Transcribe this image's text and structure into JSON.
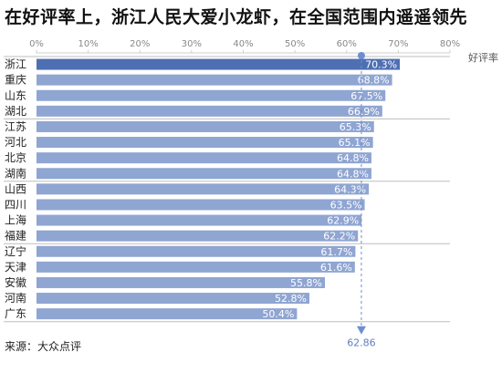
{
  "title": "在好评率上，浙江人民大爱小龙虾，在全国范围内遥遥领先",
  "source": "来源：大众点评",
  "colors": {
    "highlight_bar": "#4f6fb3",
    "bar": "#8fa5d2",
    "reference_line": "#6e8fcf"
  },
  "chart_data": {
    "type": "bar",
    "orientation": "horizontal",
    "title": "在好评率上，浙江人民大爱小龙虾，在全国范围内遥遥领先",
    "xlabel": "好评率",
    "ylabel": "",
    "xlim": [
      0,
      80
    ],
    "x_ticks": [
      "0%",
      "10%",
      "20%",
      "30%",
      "40%",
      "50%",
      "60%",
      "70%",
      "80%"
    ],
    "categories": [
      "浙江",
      "重庆",
      "山东",
      "湖北",
      "江苏",
      "河北",
      "北京",
      "湖南",
      "山西",
      "四川",
      "上海",
      "福建",
      "辽宁",
      "天津",
      "安徽",
      "河南",
      "广东"
    ],
    "values": [
      70.3,
      68.8,
      67.5,
      66.9,
      65.3,
      65.1,
      64.8,
      64.8,
      64.3,
      63.5,
      62.9,
      62.2,
      61.7,
      61.6,
      55.8,
      52.8,
      50.4
    ],
    "value_labels": [
      "70.3%",
      "68.8%",
      "67.5%",
      "66.9%",
      "65.3%",
      "65.1%",
      "64.8%",
      "64.8%",
      "64.3%",
      "63.5%",
      "62.9%",
      "62.2%",
      "61.7%",
      "61.6%",
      "55.8%",
      "52.8%",
      "50.4%"
    ],
    "highlight_category": "浙江",
    "reference_line": {
      "value": 62.86,
      "label": "62.86"
    },
    "group_separators_after": [
      "湖北",
      "湖南",
      "福建"
    ],
    "grid": true
  }
}
